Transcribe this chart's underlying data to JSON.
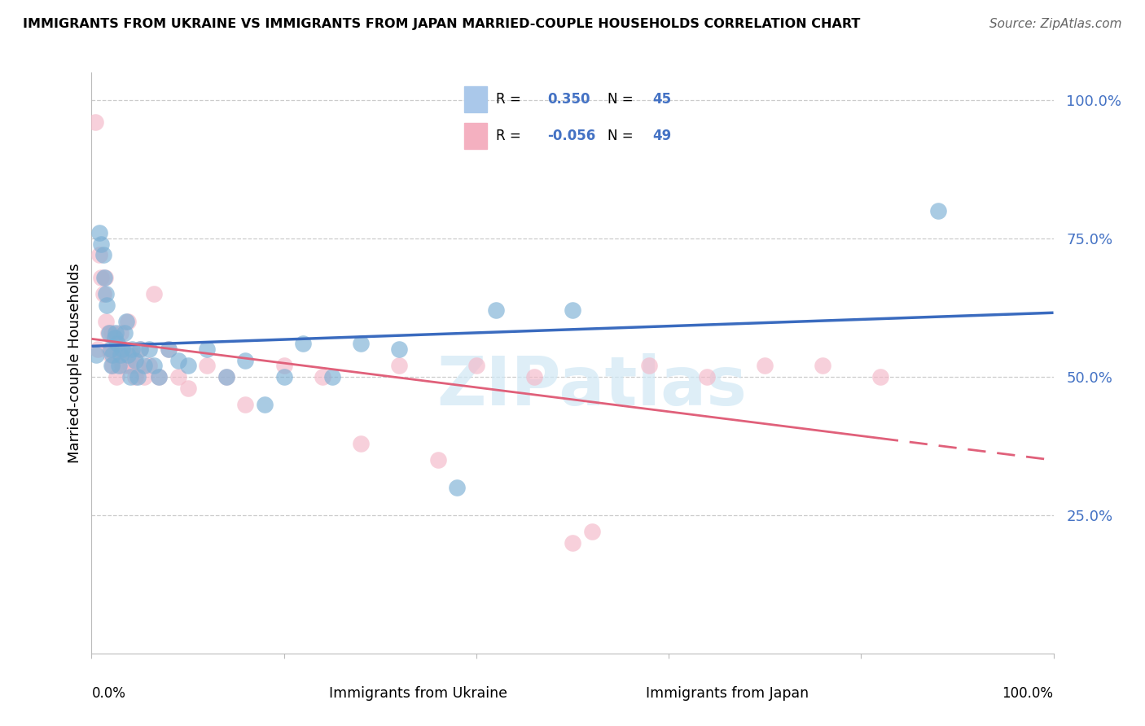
{
  "title": "IMMIGRANTS FROM UKRAINE VS IMMIGRANTS FROM JAPAN MARRIED-COUPLE HOUSEHOLDS CORRELATION CHART",
  "source": "Source: ZipAtlas.com",
  "ylabel": "Married-couple Households",
  "ukraine_color": "#7bafd4",
  "japan_color": "#f4b8c8",
  "ukraine_line_color": "#3a6bbf",
  "japan_line_color": "#e0607a",
  "ukraine_R": 0.35,
  "ukraine_N": 45,
  "japan_R": -0.056,
  "japan_N": 49,
  "legend_ukraine_color": "#aac8ea",
  "legend_japan_color": "#f4b0c0",
  "ukraine_x": [
    0.005,
    0.008,
    0.01,
    0.012,
    0.013,
    0.015,
    0.016,
    0.018,
    0.02,
    0.021,
    0.022,
    0.024,
    0.025,
    0.027,
    0.028,
    0.03,
    0.032,
    0.034,
    0.036,
    0.038,
    0.04,
    0.042,
    0.045,
    0.048,
    0.05,
    0.055,
    0.06,
    0.065,
    0.07,
    0.08,
    0.09,
    0.1,
    0.12,
    0.14,
    0.16,
    0.18,
    0.2,
    0.22,
    0.25,
    0.28,
    0.32,
    0.38,
    0.42,
    0.88,
    0.5
  ],
  "ukraine_y": [
    0.54,
    0.76,
    0.74,
    0.72,
    0.68,
    0.65,
    0.63,
    0.58,
    0.55,
    0.52,
    0.54,
    0.57,
    0.58,
    0.56,
    0.52,
    0.54,
    0.55,
    0.58,
    0.6,
    0.54,
    0.5,
    0.55,
    0.53,
    0.5,
    0.55,
    0.52,
    0.55,
    0.52,
    0.5,
    0.55,
    0.53,
    0.52,
    0.55,
    0.5,
    0.53,
    0.45,
    0.5,
    0.56,
    0.5,
    0.56,
    0.55,
    0.3,
    0.62,
    0.8,
    0.62
  ],
  "japan_x": [
    0.004,
    0.006,
    0.008,
    0.01,
    0.012,
    0.014,
    0.015,
    0.017,
    0.018,
    0.02,
    0.021,
    0.022,
    0.024,
    0.026,
    0.028,
    0.03,
    0.032,
    0.034,
    0.036,
    0.038,
    0.04,
    0.042,
    0.045,
    0.048,
    0.05,
    0.055,
    0.06,
    0.065,
    0.07,
    0.08,
    0.09,
    0.1,
    0.12,
    0.14,
    0.16,
    0.2,
    0.24,
    0.28,
    0.32,
    0.36,
    0.4,
    0.46,
    0.52,
    0.58,
    0.64,
    0.7,
    0.76,
    0.82,
    0.5
  ],
  "japan_y": [
    0.96,
    0.55,
    0.72,
    0.68,
    0.65,
    0.68,
    0.6,
    0.58,
    0.55,
    0.54,
    0.58,
    0.52,
    0.54,
    0.5,
    0.54,
    0.58,
    0.52,
    0.55,
    0.52,
    0.6,
    0.52,
    0.54,
    0.5,
    0.52,
    0.55,
    0.5,
    0.52,
    0.65,
    0.5,
    0.55,
    0.5,
    0.48,
    0.52,
    0.5,
    0.45,
    0.52,
    0.5,
    0.38,
    0.52,
    0.35,
    0.52,
    0.5,
    0.22,
    0.52,
    0.5,
    0.52,
    0.52,
    0.5,
    0.2
  ],
  "xlim": [
    0.0,
    1.0
  ],
  "ylim": [
    0.0,
    1.05
  ],
  "yticks": [
    0.25,
    0.5,
    0.75,
    1.0
  ],
  "ytick_labels": [
    "25.0%",
    "50.0%",
    "75.0%",
    "100.0%"
  ],
  "grid_color": "#cccccc",
  "spine_color": "#bbbbbb",
  "watermark_text": "ZIPatlas",
  "watermark_color": "#d0e8f5"
}
